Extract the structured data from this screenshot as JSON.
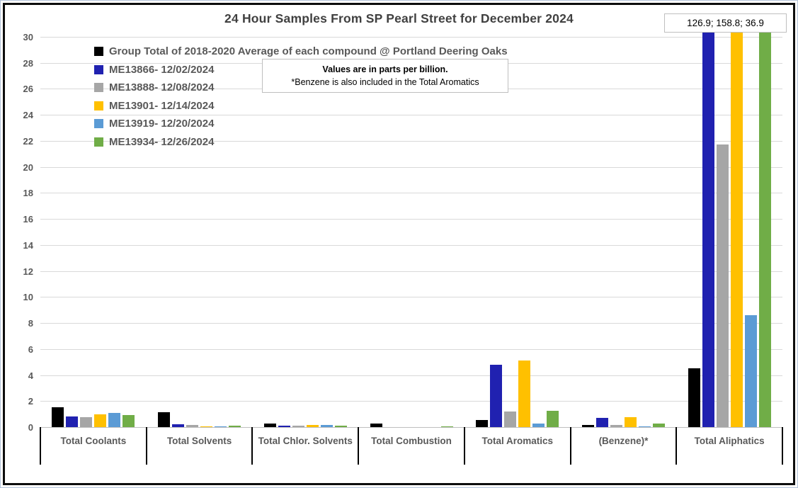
{
  "title": "24 Hour Samples From SP Pearl Street for December 2024",
  "annotation_box": "126.9; 158.8; 36.9",
  "note": {
    "line1": "Values are in parts per billion.",
    "line2": "*Benzene is also included in the Total Aromatics"
  },
  "chart_data": {
    "type": "bar",
    "title": "24 Hour Samples From SP Pearl Street for December 2024",
    "units": "parts per billion",
    "categories": [
      "Total Coolants",
      "Total Solvents",
      "Total Chlor. Solvents",
      "Total Combustion",
      "Total Aromatics",
      "(Benzene)*",
      "Total Aliphatics"
    ],
    "series": [
      {
        "name": "Group Total of 2018-2020 Average of each compound @ Portland Deering Oaks",
        "color": "#000000",
        "values": [
          1.5,
          1.15,
          0.3,
          0.25,
          0.55,
          0.15,
          4.5
        ]
      },
      {
        "name": "ME13866- 12/02/2024",
        "color": "#2021b0",
        "values": [
          0.8,
          0.2,
          0.12,
          0,
          4.8,
          0.7,
          126.9
        ]
      },
      {
        "name": "ME13888- 12/08/2024",
        "color": "#a6a6a6",
        "values": [
          0.75,
          0.15,
          0.1,
          0,
          1.2,
          0.15,
          21.7
        ]
      },
      {
        "name": "ME13901- 12/14/2024",
        "color": "#ffc000",
        "values": [
          1.0,
          0.07,
          0.18,
          0,
          5.1,
          0.75,
          158.8
        ]
      },
      {
        "name": "ME13919- 12/20/2024",
        "color": "#5b9bd5",
        "values": [
          1.1,
          0.07,
          0.18,
          0,
          0.3,
          0.05,
          8.6
        ]
      },
      {
        "name": "ME13934- 12/26/2024",
        "color": "#70ad47",
        "values": [
          0.95,
          0.12,
          0.1,
          0.08,
          1.25,
          0.25,
          36.9
        ]
      }
    ],
    "ylim": [
      0,
      30
    ],
    "ytick_step": 2,
    "grid": true,
    "legend_position": "top-left-inside",
    "clipped_values_annotation": "126.9; 158.8; 36.9",
    "clipped_note": "Blue, yellow and green bars in Total Aliphatics exceed the axis maximum of 30"
  }
}
